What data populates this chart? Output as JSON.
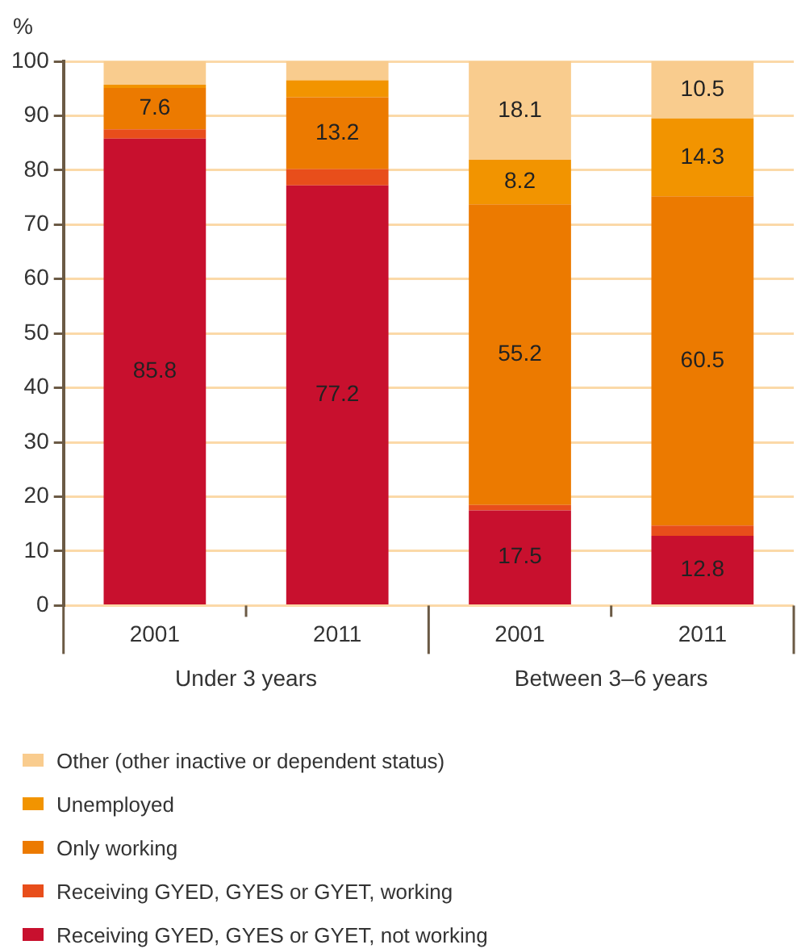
{
  "chart_data": {
    "type": "bar",
    "stacked": true,
    "ylabel": "%",
    "categories": [
      "2001",
      "2011",
      "2001",
      "2011"
    ],
    "annotations": [
      "Under 3 years",
      "Between 3–6 years"
    ],
    "ylim": [
      0,
      100
    ],
    "yticks": [
      0,
      10,
      20,
      30,
      40,
      50,
      60,
      70,
      80,
      90,
      100
    ],
    "grid": "y",
    "legend": "bottom",
    "series": [
      {
        "name": "Receiving GYED, GYES or GYET, not working",
        "color": "#c8102e",
        "values": [
          85.8,
          77.2,
          17.5,
          12.8
        ],
        "value_labels": [
          "85.8",
          "77.2",
          "17.5",
          "12.8"
        ]
      },
      {
        "name": "Receiving GYED, GYES or GYET, working",
        "color": "#e84e1b",
        "values": [
          1.7,
          3.0,
          1.0,
          1.9
        ]
      },
      {
        "name": "Only working",
        "color": "#ec7a00",
        "values": [
          7.6,
          13.2,
          55.2,
          60.5
        ],
        "value_labels": [
          "7.6",
          "13.2",
          "55.2",
          "60.5"
        ]
      },
      {
        "name": "Unemployed",
        "color": "#f29400",
        "values": [
          0.6,
          3.1,
          8.2,
          14.3
        ],
        "value_labels": [
          null,
          null,
          "8.2",
          "14.3"
        ]
      },
      {
        "name": "Other (other inactive or dependent status)",
        "color": "#f9cc8e",
        "values": [
          4.3,
          3.5,
          18.1,
          10.5
        ],
        "value_labels": [
          null,
          null,
          "18.1",
          "10.5"
        ]
      }
    ]
  }
}
